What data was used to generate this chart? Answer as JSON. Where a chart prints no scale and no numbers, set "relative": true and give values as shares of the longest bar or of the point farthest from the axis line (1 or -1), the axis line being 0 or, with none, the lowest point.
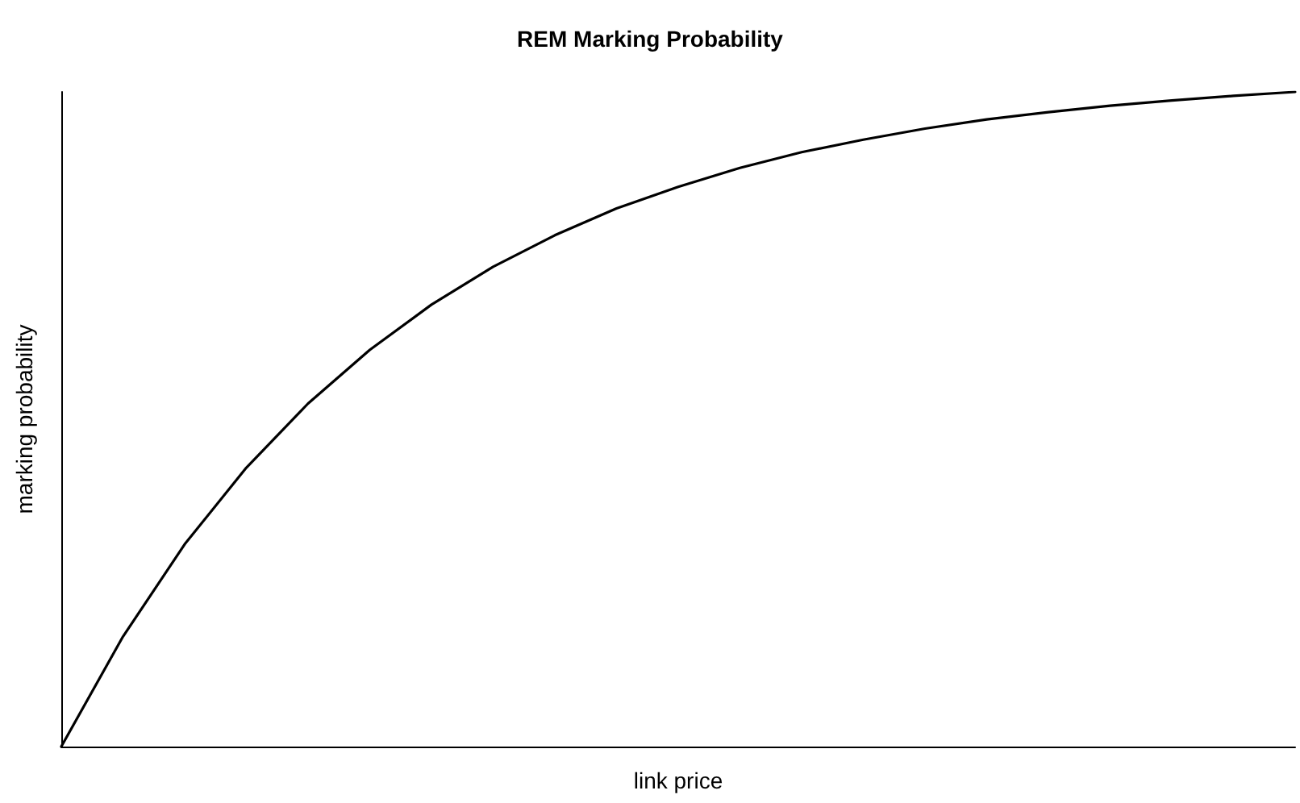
{
  "chart_data": {
    "type": "line",
    "title": "REM Marking Probability",
    "xlabel": "link price",
    "ylabel": "marking probability",
    "relative": true,
    "grid": false,
    "marker": "none",
    "line_style": "solid",
    "categories": [
      null,
      null,
      null,
      null,
      null,
      null,
      null,
      null,
      null,
      null,
      null,
      null,
      null,
      null,
      null,
      null,
      null,
      null,
      null,
      null,
      null
    ],
    "series": [
      {
        "color": "#000000",
        "values": [
          0,
          0.168,
          0.309,
          0.426,
          0.524,
          0.606,
          0.675,
          0.733,
          0.781,
          0.822,
          0.855,
          0.884,
          0.908,
          0.927,
          0.944,
          0.958,
          0.969,
          0.979,
          0.987,
          0.994,
          1
        ]
      }
    ]
  }
}
